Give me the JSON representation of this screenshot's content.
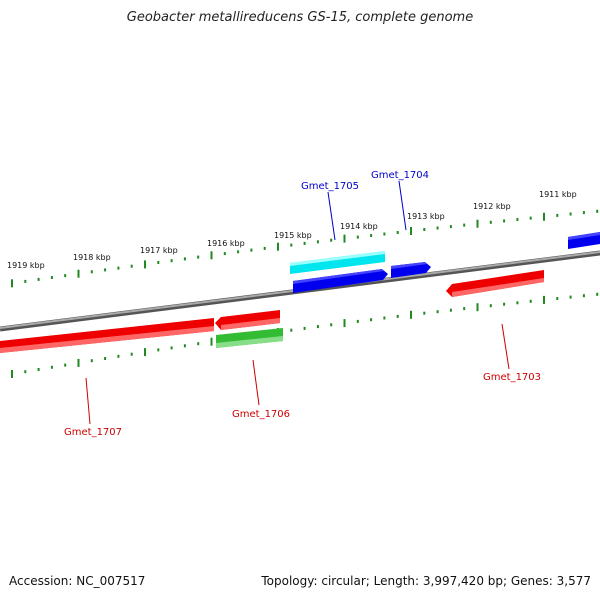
{
  "title": "Geobacter metallireducens GS-15, complete genome",
  "footer": {
    "accession": "Accession: NC_007517",
    "summary": "Topology: circular; Length: 3,997,420 bp; Genes: 3,577"
  },
  "ticks": [
    "1919 kbp",
    "1918 kbp",
    "1917 kbp",
    "1916 kbp",
    "1915 kbp",
    "1914 kbp",
    "1913 kbp",
    "1912 kbp",
    "1911 kbp"
  ],
  "genes": {
    "gmet_1703": "Gmet_1703",
    "gmet_1704": "Gmet_1704",
    "gmet_1705": "Gmet_1705",
    "gmet_1706": "Gmet_1706",
    "gmet_1707": "Gmet_1707"
  },
  "colors": {
    "backbone": "#808080",
    "forward": "#0000ee",
    "forward_light": "#00e5ee",
    "reverse": "#ee0000",
    "reverse_green": "#33bb33",
    "tick": "#228822",
    "label_blue": "#0000cc",
    "label_red": "#cc0000"
  }
}
